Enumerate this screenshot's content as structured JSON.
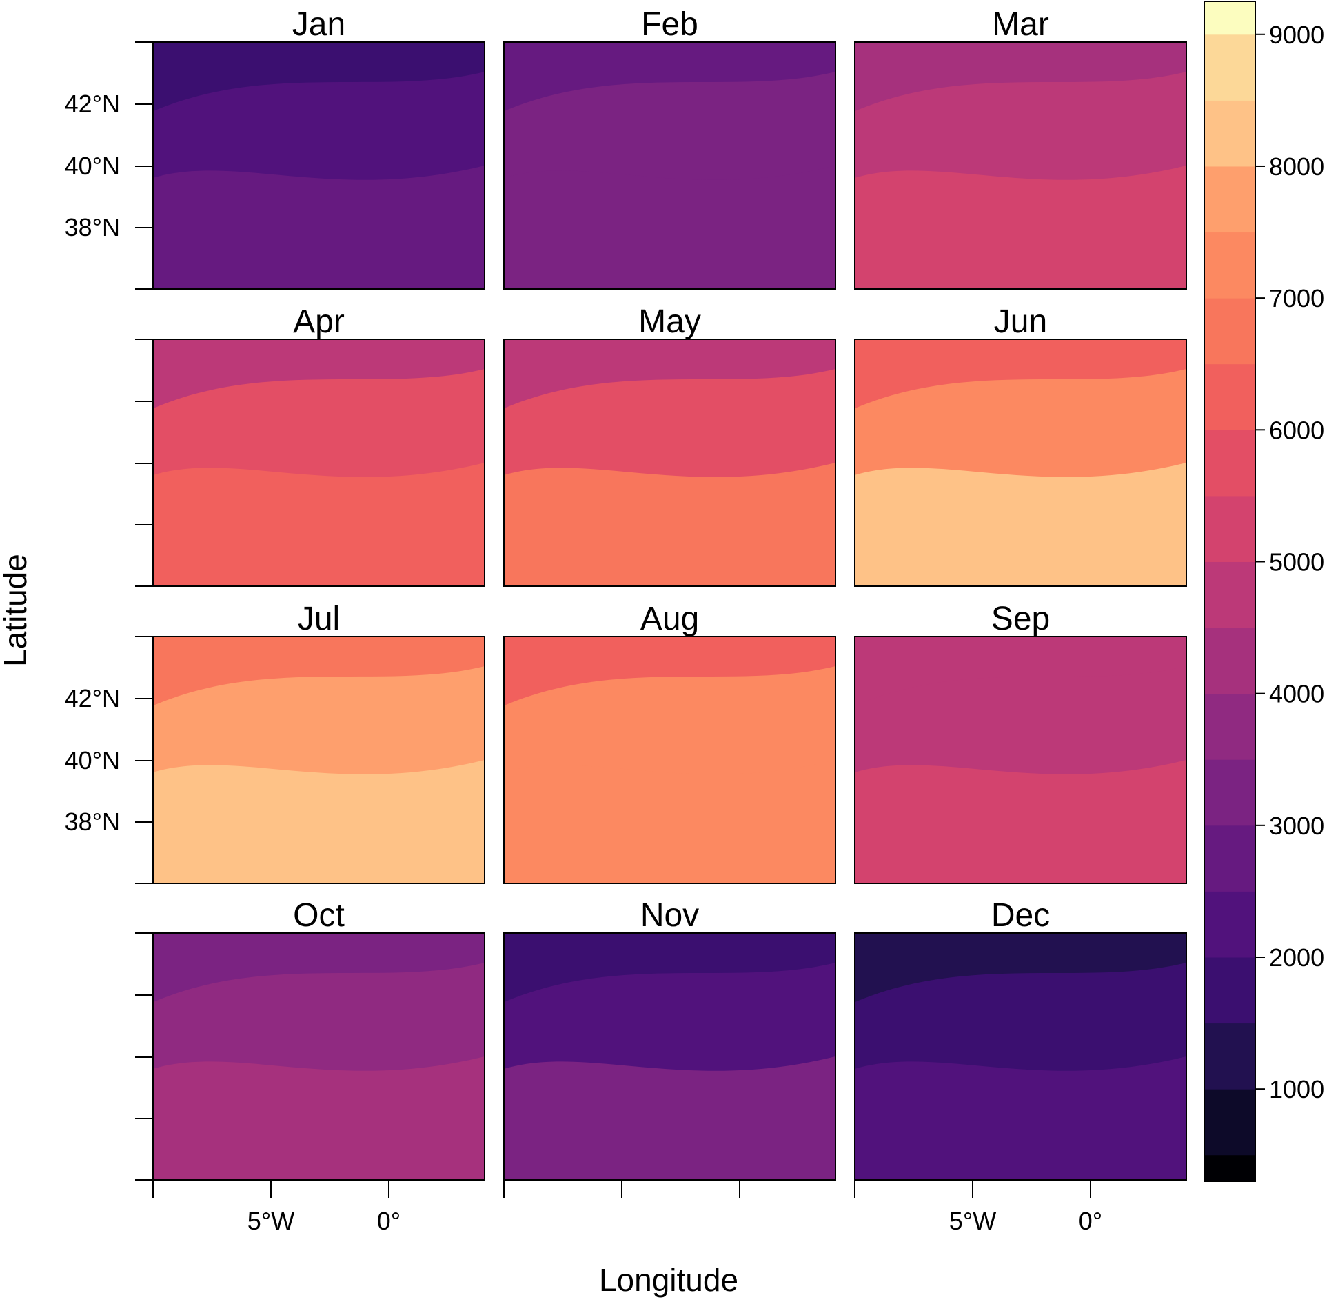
{
  "chart_data": {
    "type": "heatmap",
    "xlabel": "Longitude",
    "ylabel": "Latitude",
    "panels": [
      {
        "title": "Jan",
        "level": 2150,
        "north_level": 1700,
        "south_level": 2500
      },
      {
        "title": "Feb",
        "level": 3000,
        "north_level": 2800,
        "south_level": 3200
      },
      {
        "title": "Mar",
        "level": 4600,
        "north_level": 4000,
        "south_level": 5200
      },
      {
        "title": "Apr",
        "level": 5700,
        "north_level": 4600,
        "south_level": 6300
      },
      {
        "title": "May",
        "level": 5500,
        "north_level": 4600,
        "south_level": 6500
      },
      {
        "title": "Jun",
        "level": 7300,
        "north_level": 6200,
        "south_level": 8300
      },
      {
        "title": "Jul",
        "level": 7800,
        "north_level": 6600,
        "south_level": 8400
      },
      {
        "title": "Aug",
        "level": 7100,
        "north_level": 6000,
        "south_level": 7400
      },
      {
        "title": "Sep",
        "level": 4900,
        "north_level": 4600,
        "south_level": 5200
      },
      {
        "title": "Oct",
        "level": 3700,
        "north_level": 3400,
        "south_level": 4000
      },
      {
        "title": "Nov",
        "level": 2400,
        "north_level": 1700,
        "south_level": 3100
      },
      {
        "title": "Dec",
        "level": 1800,
        "north_level": 1300,
        "south_level": 2300
      }
    ],
    "y_ticks": [
      "42°N",
      "40°N",
      "38°N"
    ],
    "x_ticks": [
      "5°W",
      "0°"
    ],
    "colorbar": {
      "ticks": [
        "1000",
        "2000",
        "3000",
        "4000",
        "5000",
        "6000",
        "7000",
        "8000",
        "9000"
      ],
      "levels": [
        500,
        1000,
        1500,
        2000,
        2500,
        3000,
        3500,
        4000,
        4500,
        5000,
        5500,
        6000,
        6500,
        7000,
        7500,
        8000,
        8500,
        9000
      ],
      "range": [
        300,
        9250
      ],
      "colors": [
        "#000004",
        "#0d0a29",
        "#221150",
        "#3b0f70",
        "#51127c",
        "#661a80",
        "#7b2382",
        "#902a81",
        "#a6317d",
        "#bc3978",
        "#d3436e",
        "#e34e65",
        "#f1605d",
        "#f8765c",
        "#fc8961",
        "#fe9f6d",
        "#fec287",
        "#fcd898",
        "#fcfdbf"
      ],
      "placement": "right"
    }
  }
}
